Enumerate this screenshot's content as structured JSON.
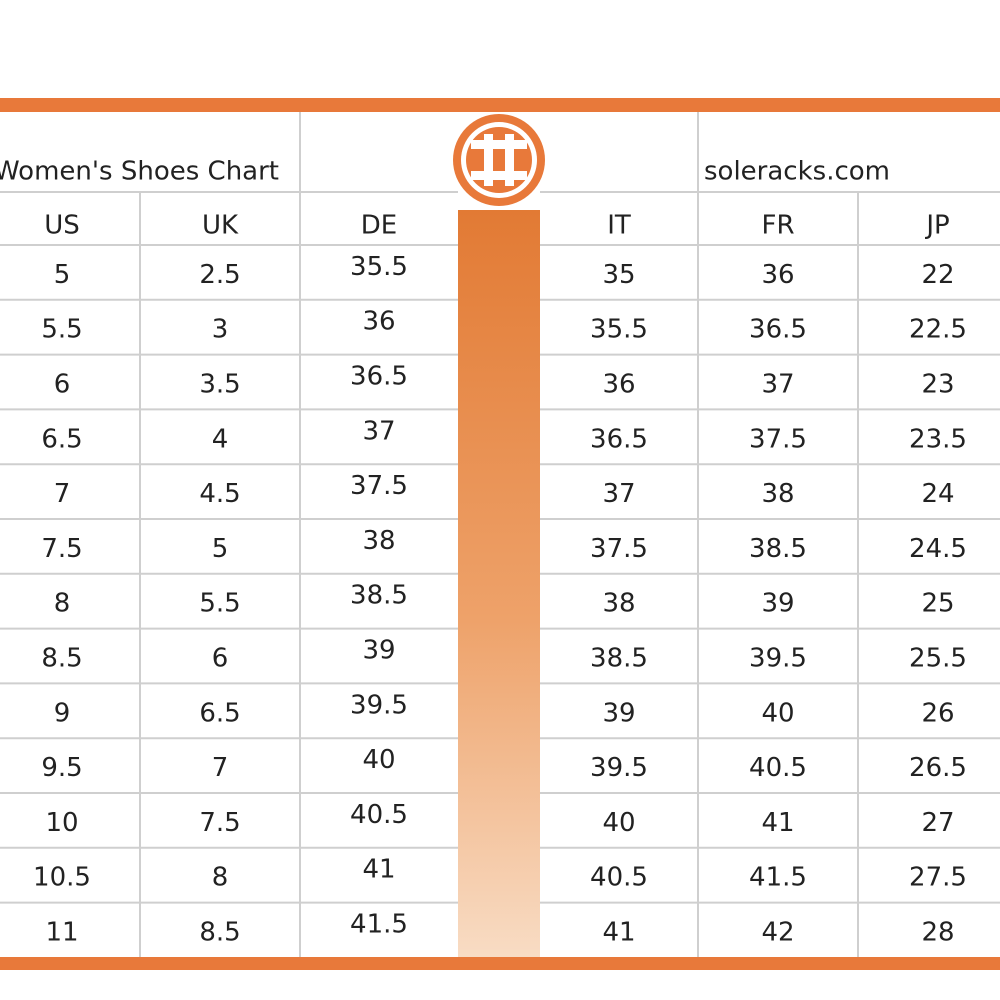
{
  "header": {
    "title": "Women's Shoes Chart",
    "site": "soleracks.com"
  },
  "table": {
    "columns": [
      "US",
      "UK",
      "DE",
      "IT",
      "FR",
      "JP"
    ],
    "rows": [
      [
        "5",
        "2.5",
        "35.5",
        "35",
        "36",
        "22"
      ],
      [
        "5.5",
        "3",
        "36",
        "35.5",
        "36.5",
        "22.5"
      ],
      [
        "6",
        "3.5",
        "36.5",
        "36",
        "37",
        "23"
      ],
      [
        "6.5",
        "4",
        "37",
        "36.5",
        "37.5",
        "23.5"
      ],
      [
        "7",
        "4.5",
        "37.5",
        "37",
        "38",
        "24"
      ],
      [
        "7.5",
        "5",
        "38",
        "37.5",
        "38.5",
        "24.5"
      ],
      [
        "8",
        "5.5",
        "38.5",
        "38",
        "39",
        "25"
      ],
      [
        "8.5",
        "6",
        "39",
        "38.5",
        "39.5",
        "25.5"
      ],
      [
        "9",
        "6.5",
        "39.5",
        "39",
        "40",
        "26"
      ],
      [
        "9.5",
        "7",
        "40",
        "39.5",
        "40.5",
        "26.5"
      ],
      [
        "10",
        "7.5",
        "40.5",
        "40",
        "41",
        "27"
      ],
      [
        "10.5",
        "8",
        "41",
        "40.5",
        "41.5",
        "27.5"
      ],
      [
        "11",
        "8.5",
        "41.5",
        "41",
        "42",
        "28"
      ]
    ]
  }
}
